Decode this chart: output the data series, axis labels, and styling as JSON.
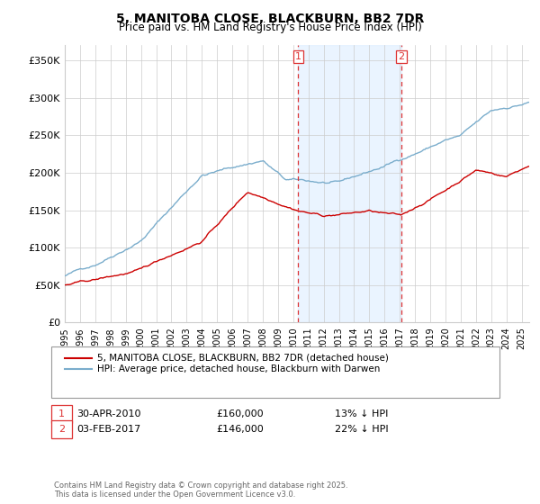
{
  "title": "5, MANITOBA CLOSE, BLACKBURN, BB2 7DR",
  "subtitle": "Price paid vs. HM Land Registry's House Price Index (HPI)",
  "legend_line1": "5, MANITOBA CLOSE, BLACKBURN, BB2 7DR (detached house)",
  "legend_line2": "HPI: Average price, detached house, Blackburn with Darwen",
  "annotation1_label": "1",
  "annotation1_date": "30-APR-2010",
  "annotation1_price": "£160,000",
  "annotation1_hpi": "13% ↓ HPI",
  "annotation2_label": "2",
  "annotation2_date": "03-FEB-2017",
  "annotation2_price": "£146,000",
  "annotation2_hpi": "22% ↓ HPI",
  "vline1_x": 2010.33,
  "vline2_x": 2017.09,
  "shade_xmin": 2010.33,
  "shade_xmax": 2017.09,
  "ylim": [
    0,
    370000
  ],
  "xlim_min": 1995.0,
  "xlim_max": 2025.5,
  "yticks": [
    0,
    50000,
    100000,
    150000,
    200000,
    250000,
    300000,
    350000
  ],
  "ytick_labels": [
    "£0",
    "£50K",
    "£100K",
    "£150K",
    "£200K",
    "£250K",
    "£300K",
    "£350K"
  ],
  "xticks": [
    1995,
    1996,
    1997,
    1998,
    1999,
    2000,
    2001,
    2002,
    2003,
    2004,
    2005,
    2006,
    2007,
    2008,
    2009,
    2010,
    2011,
    2012,
    2013,
    2014,
    2015,
    2016,
    2017,
    2018,
    2019,
    2020,
    2021,
    2022,
    2023,
    2024,
    2025
  ],
  "red_color": "#cc0000",
  "blue_color": "#7aadcc",
  "shade_color": "#ddeeff",
  "vline_color": "#dd3333",
  "footer": "Contains HM Land Registry data © Crown copyright and database right 2025.\nThis data is licensed under the Open Government Licence v3.0.",
  "background_color": "#ffffff",
  "grid_color": "#cccccc"
}
